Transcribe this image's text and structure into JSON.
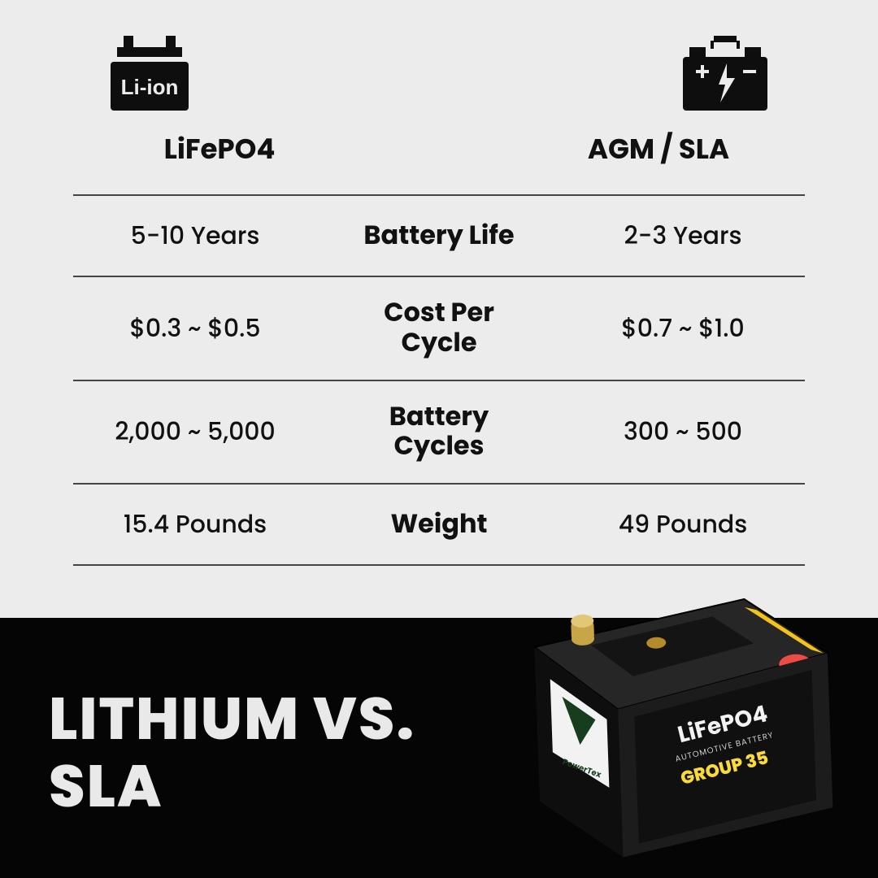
{
  "colors": {
    "upper_bg": "#ececec",
    "lower_bg": "#050505",
    "text": "#111111",
    "divider": "#444444",
    "headline": "#e9e9e9",
    "icon": "#0e0e0e"
  },
  "typography": {
    "heading_fontsize": 34,
    "heading_weight": 700,
    "cell_fontsize": 30,
    "cell_weight": 500,
    "mid_fontsize": 32,
    "mid_weight": 700,
    "headline_fontsize": 72,
    "headline_weight": 800
  },
  "icons": {
    "left": "liion-battery-icon",
    "left_label": "Li-ion",
    "right": "car-battery-icon"
  },
  "columns": {
    "left_heading": "LiFePO4",
    "right_heading": "AGM / SLA"
  },
  "comparison": {
    "type": "table",
    "rows": [
      {
        "left": "5-10 Years",
        "mid": "Battery Life",
        "right": "2-3 Years"
      },
      {
        "left": "$0.3 ~ $0.5",
        "mid": "Cost Per\nCycle",
        "right": "$0.7 ~ $1.0"
      },
      {
        "left": "2,000 ~ 5,000",
        "mid": "Battery\nCycles",
        "right": "300 ~ 500"
      },
      {
        "left": "15.4 Pounds",
        "mid": "Weight",
        "right": "49 Pounds"
      }
    ],
    "divider_color": "#444444",
    "row_padding": 26
  },
  "headline": "LITHIUM VS.\nSLA",
  "product": {
    "brand": "PowerTex",
    "label_line1": "LiFePO4",
    "label_line2": "AUTOMOTIVE BATTERY",
    "label_line3": "GROUP 35",
    "case_color": "#1c1c1c",
    "label_bg_top": "#f2f2f2",
    "label_bg_bottom": "#f9da3a",
    "terminal_left": "#c8a648",
    "terminal_right": "#d8322f",
    "warning_bg": "#f6c21a"
  }
}
